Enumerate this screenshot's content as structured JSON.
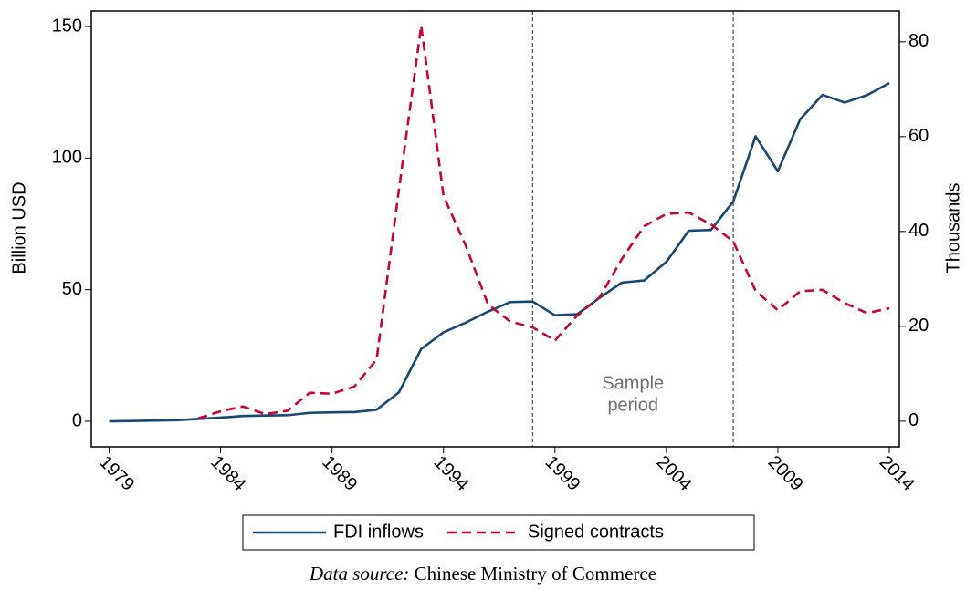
{
  "chart_data": {
    "type": "line",
    "y_label": "Billion USD",
    "y2_label": "Thousands",
    "x": [
      1979,
      1980,
      1981,
      1982,
      1983,
      1984,
      1985,
      1986,
      1987,
      1988,
      1989,
      1990,
      1991,
      1992,
      1993,
      1994,
      1995,
      1996,
      1997,
      1998,
      1999,
      2000,
      2001,
      2002,
      2003,
      2004,
      2005,
      2006,
      2007,
      2008,
      2009,
      2010,
      2011,
      2012,
      2013,
      2014
    ],
    "xlim": [
      1978.2,
      2014.45
    ],
    "xticks": [
      1979,
      1984,
      1989,
      1994,
      1999,
      2004,
      2009,
      2014
    ],
    "ylim": [
      -9.7,
      155.9
    ],
    "yticks": [
      0,
      50,
      100,
      150
    ],
    "y2lim": [
      -5.4,
      86.5
    ],
    "y2ticks": [
      0,
      20,
      40,
      60,
      80
    ],
    "vlines": [
      1998,
      2007
    ],
    "annotation": [
      "Sample",
      "period"
    ],
    "legend": "bottom",
    "series": [
      {
        "name": "FDI inflows",
        "color": "#1a476f",
        "dash": false,
        "values": [
          0.0,
          0.1,
          0.3,
          0.4,
          0.9,
          1.4,
          2.0,
          2.2,
          2.3,
          3.2,
          3.4,
          3.5,
          4.4,
          11.0,
          27.5,
          33.8,
          37.5,
          41.7,
          45.3,
          45.5,
          40.3,
          40.7,
          46.9,
          52.7,
          53.5,
          60.6,
          72.4,
          72.7,
          83.5,
          108.3,
          95.0,
          114.7,
          124.0,
          121.1,
          123.9,
          128.5
        ]
      },
      {
        "name": "Signed contracts",
        "color": "#c10534",
        "dash": true,
        "axis": "y2",
        "values": [
          null,
          null,
          null,
          null,
          0.6,
          2.1,
          3.1,
          1.5,
          2.2,
          6.0,
          5.8,
          7.3,
          13.0,
          48.8,
          83.4,
          47.5,
          37.0,
          24.6,
          21.0,
          19.8,
          17.0,
          22.3,
          26.1,
          34.2,
          41.1,
          43.7,
          44.0,
          41.5,
          37.9,
          27.5,
          23.4,
          27.4,
          27.7,
          24.9,
          22.8,
          23.8
        ]
      }
    ],
    "caption": {
      "label": "Data source:",
      "text": "Chinese Ministry of Commerce"
    }
  }
}
